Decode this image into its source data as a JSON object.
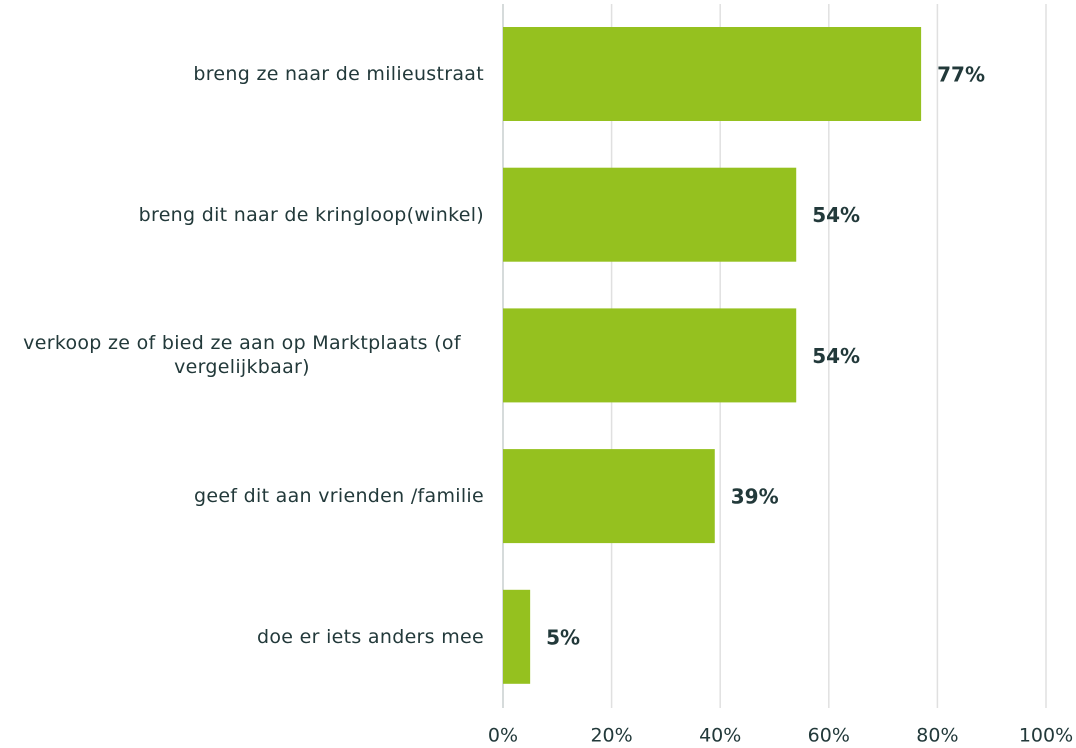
{
  "chart_data": {
    "type": "bar",
    "orientation": "horizontal",
    "categories": [
      "breng ze naar de milieustraat",
      "breng dit naar de kringloop(winkel)",
      "verkoop ze of bied ze aan op Marktplaats (of vergelijkbaar)",
      "geef dit aan vrienden /familie",
      "doe er iets anders mee"
    ],
    "values": [
      77,
      54,
      54,
      39,
      5
    ],
    "value_labels": [
      "77%",
      "54%",
      "54%",
      "39%",
      "5%"
    ],
    "color": "#95c11f",
    "xlim": [
      0,
      100
    ],
    "xticks": [
      {
        "value": 0,
        "label": "0%"
      },
      {
        "value": 20,
        "label": "20%"
      },
      {
        "value": 40,
        "label": "40%"
      },
      {
        "value": 60,
        "label": "60%"
      },
      {
        "value": 80,
        "label": "80%"
      },
      {
        "value": 100,
        "label": "100%"
      }
    ],
    "grid": true
  }
}
